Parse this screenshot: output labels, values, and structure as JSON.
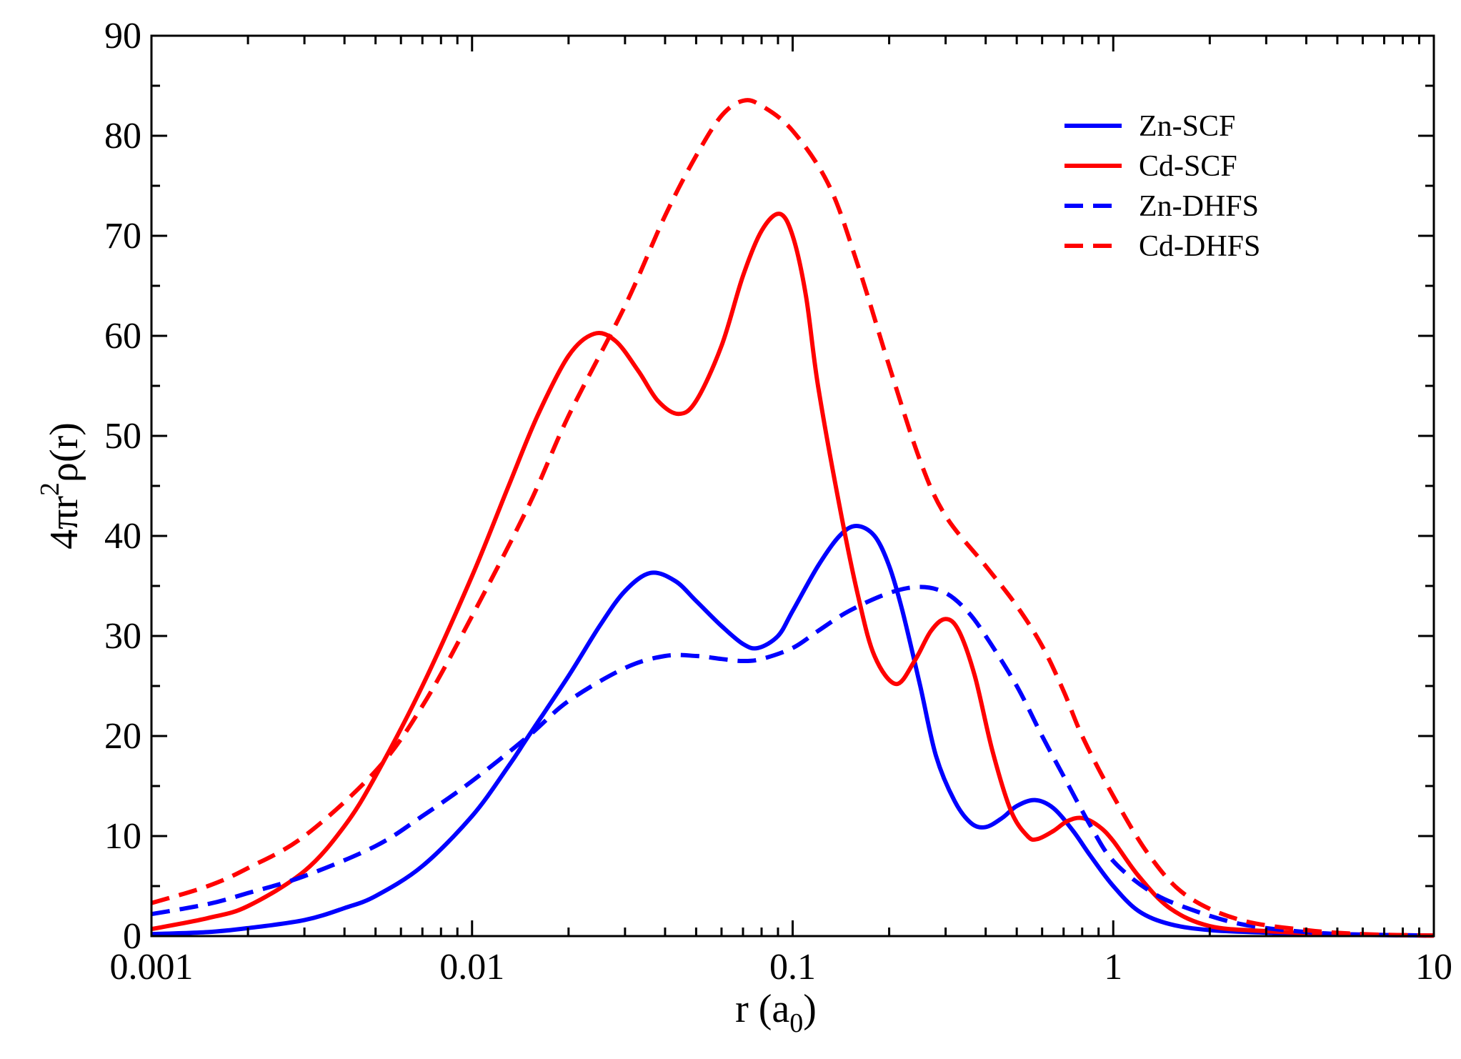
{
  "chart_data": {
    "type": "line",
    "title": "",
    "xlabel_main": "r (a",
    "xlabel_sub": "0",
    "xlabel_close": ")",
    "ylabel_pre": "4πr",
    "ylabel_sup": "2",
    "ylabel_post": "ρ(r)",
    "xscale": "log",
    "xlim": [
      0.001,
      10
    ],
    "ylim": [
      0,
      90
    ],
    "x_ticks": [
      0.001,
      0.01,
      0.1,
      1,
      10
    ],
    "x_tick_labels": [
      "0.001",
      "0.01",
      "0.1",
      "1",
      "10"
    ],
    "y_ticks": [
      0,
      10,
      20,
      30,
      40,
      50,
      60,
      70,
      80,
      90
    ],
    "y_tick_labels": [
      "0",
      "10",
      "20",
      "30",
      "40",
      "50",
      "60",
      "70",
      "80",
      "90"
    ],
    "legend_position": "top-right",
    "series": [
      {
        "name": "Zn-SCF",
        "color": "#0000ff",
        "dash": "solid",
        "points": [
          [
            0.001,
            0.2
          ],
          [
            0.0015,
            0.4
          ],
          [
            0.002,
            0.8
          ],
          [
            0.003,
            1.6
          ],
          [
            0.004,
            2.8
          ],
          [
            0.005,
            4.0
          ],
          [
            0.007,
            7.0
          ],
          [
            0.01,
            12.0
          ],
          [
            0.013,
            17.0
          ],
          [
            0.015,
            20.0
          ],
          [
            0.02,
            26.0
          ],
          [
            0.025,
            31.0
          ],
          [
            0.03,
            34.5
          ],
          [
            0.036,
            36.3
          ],
          [
            0.043,
            35.5
          ],
          [
            0.05,
            33.5
          ],
          [
            0.06,
            31.0
          ],
          [
            0.07,
            29.2
          ],
          [
            0.078,
            28.8
          ],
          [
            0.09,
            30.0
          ],
          [
            0.1,
            32.5
          ],
          [
            0.12,
            37.0
          ],
          [
            0.14,
            40.0
          ],
          [
            0.158,
            41.0
          ],
          [
            0.18,
            40.0
          ],
          [
            0.2,
            37.0
          ],
          [
            0.22,
            32.5
          ],
          [
            0.25,
            25.0
          ],
          [
            0.28,
            18.0
          ],
          [
            0.32,
            13.5
          ],
          [
            0.36,
            11.3
          ],
          [
            0.4,
            10.9
          ],
          [
            0.45,
            11.8
          ],
          [
            0.5,
            13.0
          ],
          [
            0.57,
            13.6
          ],
          [
            0.65,
            12.8
          ],
          [
            0.75,
            10.5
          ],
          [
            0.85,
            8.0
          ],
          [
            1.0,
            5.0
          ],
          [
            1.2,
            2.5
          ],
          [
            1.5,
            1.2
          ],
          [
            2.0,
            0.6
          ],
          [
            3.0,
            0.35
          ],
          [
            5.0,
            0.15
          ],
          [
            10.0,
            0.05
          ]
        ]
      },
      {
        "name": "Cd-SCF",
        "color": "#ff0000",
        "dash": "solid",
        "points": [
          [
            0.001,
            0.7
          ],
          [
            0.0015,
            1.8
          ],
          [
            0.002,
            3.0
          ],
          [
            0.003,
            6.5
          ],
          [
            0.004,
            11.0
          ],
          [
            0.005,
            16.0
          ],
          [
            0.007,
            25.0
          ],
          [
            0.01,
            36.0
          ],
          [
            0.013,
            45.0
          ],
          [
            0.016,
            52.0
          ],
          [
            0.02,
            58.0
          ],
          [
            0.024,
            60.2
          ],
          [
            0.028,
            59.5
          ],
          [
            0.033,
            56.5
          ],
          [
            0.038,
            53.5
          ],
          [
            0.044,
            52.2
          ],
          [
            0.05,
            53.5
          ],
          [
            0.06,
            59.0
          ],
          [
            0.07,
            66.0
          ],
          [
            0.08,
            70.5
          ],
          [
            0.091,
            72.2
          ],
          [
            0.1,
            70.0
          ],
          [
            0.11,
            64.0
          ],
          [
            0.12,
            55.0
          ],
          [
            0.14,
            43.0
          ],
          [
            0.16,
            34.0
          ],
          [
            0.18,
            28.0
          ],
          [
            0.21,
            25.2
          ],
          [
            0.24,
            27.5
          ],
          [
            0.27,
            30.5
          ],
          [
            0.3,
            31.7
          ],
          [
            0.33,
            30.5
          ],
          [
            0.37,
            26.0
          ],
          [
            0.42,
            18.5
          ],
          [
            0.48,
            12.5
          ],
          [
            0.54,
            10.0
          ],
          [
            0.58,
            9.7
          ],
          [
            0.65,
            10.5
          ],
          [
            0.72,
            11.5
          ],
          [
            0.8,
            11.8
          ],
          [
            0.9,
            11.0
          ],
          [
            1.0,
            9.5
          ],
          [
            1.2,
            6.0
          ],
          [
            1.5,
            2.8
          ],
          [
            2.0,
            1.0
          ],
          [
            3.0,
            0.5
          ],
          [
            5.0,
            0.2
          ],
          [
            10.0,
            0.05
          ]
        ]
      },
      {
        "name": "Zn-DHFS",
        "color": "#0000ff",
        "dash": "dashed",
        "points": [
          [
            0.001,
            2.2
          ],
          [
            0.0015,
            3.2
          ],
          [
            0.002,
            4.3
          ],
          [
            0.003,
            6.0
          ],
          [
            0.005,
            9.0
          ],
          [
            0.007,
            12.0
          ],
          [
            0.01,
            15.5
          ],
          [
            0.015,
            20.0
          ],
          [
            0.02,
            23.5
          ],
          [
            0.03,
            26.8
          ],
          [
            0.04,
            28.0
          ],
          [
            0.05,
            28.0
          ],
          [
            0.06,
            27.7
          ],
          [
            0.07,
            27.5
          ],
          [
            0.08,
            27.7
          ],
          [
            0.1,
            28.8
          ],
          [
            0.12,
            30.5
          ],
          [
            0.15,
            32.5
          ],
          [
            0.2,
            34.3
          ],
          [
            0.25,
            34.9
          ],
          [
            0.3,
            34.3
          ],
          [
            0.35,
            32.5
          ],
          [
            0.4,
            30.0
          ],
          [
            0.5,
            25.0
          ],
          [
            0.6,
            20.0
          ],
          [
            0.7,
            16.0
          ],
          [
            0.85,
            11.0
          ],
          [
            1.0,
            7.5
          ],
          [
            1.3,
            4.5
          ],
          [
            1.7,
            2.8
          ],
          [
            2.5,
            1.2
          ],
          [
            4.0,
            0.4
          ],
          [
            6.0,
            0.15
          ],
          [
            10.0,
            0.05
          ]
        ]
      },
      {
        "name": "Cd-DHFS",
        "color": "#ff0000",
        "dash": "dashed",
        "points": [
          [
            0.001,
            3.3
          ],
          [
            0.0015,
            5.0
          ],
          [
            0.002,
            6.8
          ],
          [
            0.003,
            10.0
          ],
          [
            0.005,
            16.5
          ],
          [
            0.007,
            23.0
          ],
          [
            0.01,
            32.0
          ],
          [
            0.015,
            43.0
          ],
          [
            0.02,
            52.0
          ],
          [
            0.03,
            63.0
          ],
          [
            0.04,
            72.0
          ],
          [
            0.05,
            78.0
          ],
          [
            0.06,
            82.0
          ],
          [
            0.07,
            83.5
          ],
          [
            0.08,
            83.0
          ],
          [
            0.1,
            80.5
          ],
          [
            0.13,
            75.0
          ],
          [
            0.16,
            67.0
          ],
          [
            0.2,
            57.0
          ],
          [
            0.25,
            47.5
          ],
          [
            0.3,
            42.0
          ],
          [
            0.4,
            37.0
          ],
          [
            0.5,
            33.0
          ],
          [
            0.6,
            29.0
          ],
          [
            0.7,
            24.5
          ],
          [
            0.8,
            20.0
          ],
          [
            1.0,
            14.0
          ],
          [
            1.3,
            8.0
          ],
          [
            1.7,
            4.0
          ],
          [
            2.5,
            1.6
          ],
          [
            4.0,
            0.6
          ],
          [
            6.0,
            0.2
          ],
          [
            10.0,
            0.05
          ]
        ]
      }
    ]
  }
}
